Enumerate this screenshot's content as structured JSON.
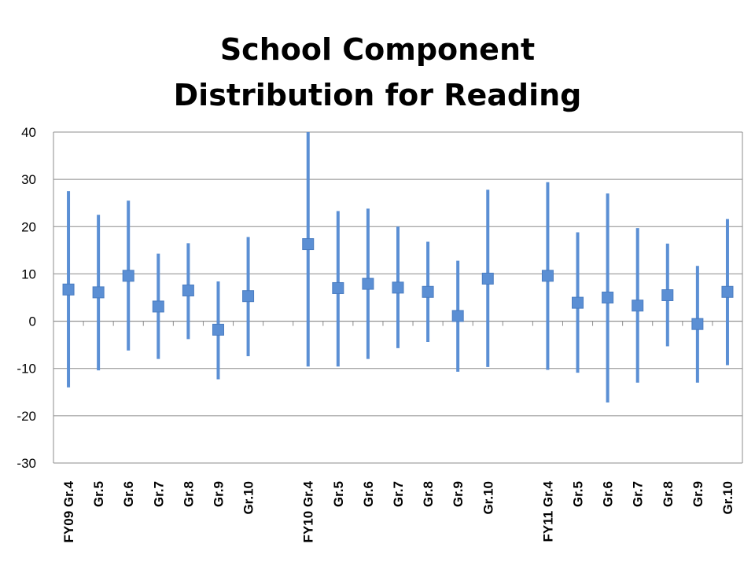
{
  "chart_data": {
    "type": "scatter",
    "title_lines": [
      "School Component",
      "Distribution for Reading"
    ],
    "xlabel": "",
    "ylabel": "",
    "ylim": [
      -30,
      40
    ],
    "yticks": [
      -30,
      -20,
      -10,
      0,
      10,
      20,
      30,
      40
    ],
    "grid": true,
    "legend": "none",
    "categories": [
      "FY09 Gr.4",
      "Gr.5",
      "Gr.6",
      "Gr.7",
      "Gr.8",
      "Gr.9",
      "Gr.10",
      "",
      "FY10 Gr.4",
      "Gr.5",
      "Gr.6",
      "Gr.7",
      "Gr.8",
      "Gr.9",
      "Gr.10",
      "",
      "FY11 Gr.4",
      "Gr.5",
      "Gr.6",
      "Gr.7",
      "Gr.8",
      "Gr.9",
      "Gr.10"
    ],
    "series": [
      {
        "mid": [
          6.7,
          6.1,
          9.6,
          3.1,
          6.5,
          -1.8,
          5.3,
          null,
          16.3,
          7.0,
          7.9,
          7.1,
          6.2,
          1.1,
          9.0,
          null,
          9.6,
          3.9,
          5.0,
          3.3,
          5.5,
          -0.6,
          6.2
        ],
        "high": [
          27.5,
          22.5,
          25.5,
          14.3,
          16.5,
          8.4,
          17.8,
          null,
          40,
          23.3,
          23.8,
          20.0,
          16.8,
          12.8,
          27.8,
          null,
          29.4,
          18.8,
          27.0,
          19.7,
          16.4,
          11.7,
          21.6
        ],
        "low": [
          -14.0,
          -10.4,
          -6.2,
          -8.0,
          -3.8,
          -12.3,
          -7.4,
          null,
          -9.6,
          -9.6,
          -8.0,
          -5.7,
          -4.4,
          -10.7,
          -9.7,
          null,
          -10.3,
          -10.9,
          -17.2,
          -13.0,
          -5.3,
          -13.0,
          -9.3
        ]
      }
    ],
    "colors": {
      "marker": "#5b8fd4",
      "grid": "#8c8c8c",
      "axis": "#8c8c8c",
      "text": "#000000"
    }
  }
}
